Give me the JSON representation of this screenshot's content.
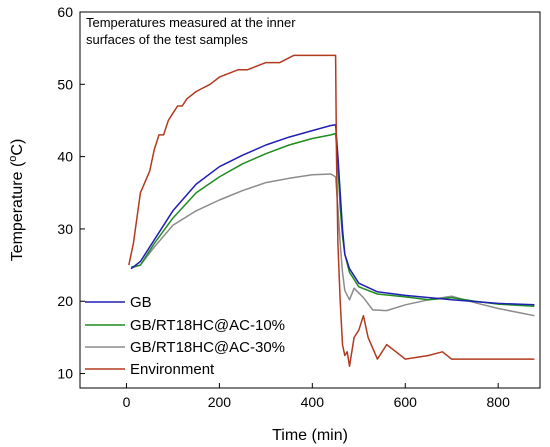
{
  "chart_data": {
    "type": "line",
    "xlabel": "Time (min)",
    "ylabel_main": "Temperature (",
    "ylabel_sup": "o",
    "ylabel_end": "C)",
    "annotation_line1": "Temperatures measured at the inner",
    "annotation_line2": "surfaces of the test samples",
    "xlim": [
      -100,
      890
    ],
    "ylim": [
      8,
      60
    ],
    "x_ticks": [
      0,
      200,
      400,
      600,
      800
    ],
    "y_ticks": [
      10,
      20,
      30,
      40,
      50,
      60
    ],
    "legend_position": "bottom-left",
    "series": [
      {
        "name": "GB",
        "color": "#1f1fb4",
        "points": [
          [
            10,
            24.5
          ],
          [
            30,
            25.5
          ],
          [
            60,
            28.5
          ],
          [
            100,
            32.5
          ],
          [
            150,
            36.2
          ],
          [
            200,
            38.6
          ],
          [
            250,
            40.2
          ],
          [
            300,
            41.6
          ],
          [
            350,
            42.7
          ],
          [
            400,
            43.6
          ],
          [
            440,
            44.3
          ],
          [
            450,
            44.4
          ],
          [
            455,
            40
          ],
          [
            460,
            35
          ],
          [
            465,
            30
          ],
          [
            470,
            26.5
          ],
          [
            480,
            24.5
          ],
          [
            500,
            22.5
          ],
          [
            540,
            21.3
          ],
          [
            600,
            20.8
          ],
          [
            700,
            20.2
          ],
          [
            800,
            19.7
          ],
          [
            878,
            19.5
          ]
        ]
      },
      {
        "name": "GB/RT18HC@AC-10%",
        "color": "#1f8c1f",
        "points": [
          [
            10,
            24.7
          ],
          [
            30,
            25
          ],
          [
            60,
            28
          ],
          [
            100,
            31.5
          ],
          [
            150,
            35
          ],
          [
            200,
            37.2
          ],
          [
            250,
            39
          ],
          [
            300,
            40.4
          ],
          [
            350,
            41.6
          ],
          [
            400,
            42.5
          ],
          [
            440,
            43
          ],
          [
            450,
            43.2
          ],
          [
            455,
            39
          ],
          [
            460,
            33
          ],
          [
            465,
            29
          ],
          [
            470,
            26.5
          ],
          [
            480,
            24
          ],
          [
            500,
            22
          ],
          [
            540,
            21
          ],
          [
            600,
            20.6
          ],
          [
            650,
            20.2
          ],
          [
            700,
            20.5
          ],
          [
            750,
            20
          ],
          [
            800,
            19.6
          ],
          [
            878,
            19.3
          ]
        ]
      },
      {
        "name": "GB/RT18HC@AC-30%",
        "color": "#8c8c8c",
        "points": [
          [
            10,
            24.6
          ],
          [
            30,
            25
          ],
          [
            60,
            27.5
          ],
          [
            100,
            30.5
          ],
          [
            150,
            32.5
          ],
          [
            200,
            34
          ],
          [
            250,
            35.3
          ],
          [
            300,
            36.4
          ],
          [
            350,
            37
          ],
          [
            400,
            37.5
          ],
          [
            440,
            37.6
          ],
          [
            450,
            37.2
          ],
          [
            455,
            33
          ],
          [
            460,
            28
          ],
          [
            465,
            24
          ],
          [
            470,
            21.5
          ],
          [
            480,
            20.2
          ],
          [
            490,
            21.8
          ],
          [
            510,
            20.5
          ],
          [
            530,
            18.8
          ],
          [
            560,
            18.7
          ],
          [
            600,
            19.5
          ],
          [
            650,
            20.2
          ],
          [
            700,
            20.7
          ],
          [
            750,
            19.8
          ],
          [
            800,
            19
          ],
          [
            878,
            18
          ]
        ]
      },
      {
        "name": "Environment",
        "color": "#b23a1f",
        "points": [
          [
            5,
            25
          ],
          [
            15,
            28
          ],
          [
            30,
            35
          ],
          [
            50,
            38
          ],
          [
            60,
            41
          ],
          [
            70,
            43
          ],
          [
            80,
            43
          ],
          [
            90,
            45
          ],
          [
            100,
            46
          ],
          [
            110,
            47
          ],
          [
            120,
            47
          ],
          [
            130,
            48
          ],
          [
            150,
            49
          ],
          [
            180,
            50
          ],
          [
            200,
            51
          ],
          [
            240,
            52
          ],
          [
            260,
            52
          ],
          [
            300,
            53
          ],
          [
            330,
            53
          ],
          [
            360,
            54
          ],
          [
            400,
            54
          ],
          [
            440,
            54
          ],
          [
            450,
            54
          ],
          [
            452,
            40
          ],
          [
            455,
            28
          ],
          [
            460,
            20
          ],
          [
            465,
            14
          ],
          [
            470,
            12.5
          ],
          [
            475,
            13
          ],
          [
            480,
            11
          ],
          [
            490,
            15
          ],
          [
            500,
            16
          ],
          [
            510,
            18
          ],
          [
            520,
            15
          ],
          [
            540,
            12
          ],
          [
            560,
            14
          ],
          [
            580,
            13
          ],
          [
            600,
            12
          ],
          [
            650,
            12.5
          ],
          [
            680,
            13
          ],
          [
            700,
            12
          ],
          [
            750,
            12
          ],
          [
            800,
            12
          ],
          [
            878,
            12
          ]
        ]
      }
    ]
  }
}
